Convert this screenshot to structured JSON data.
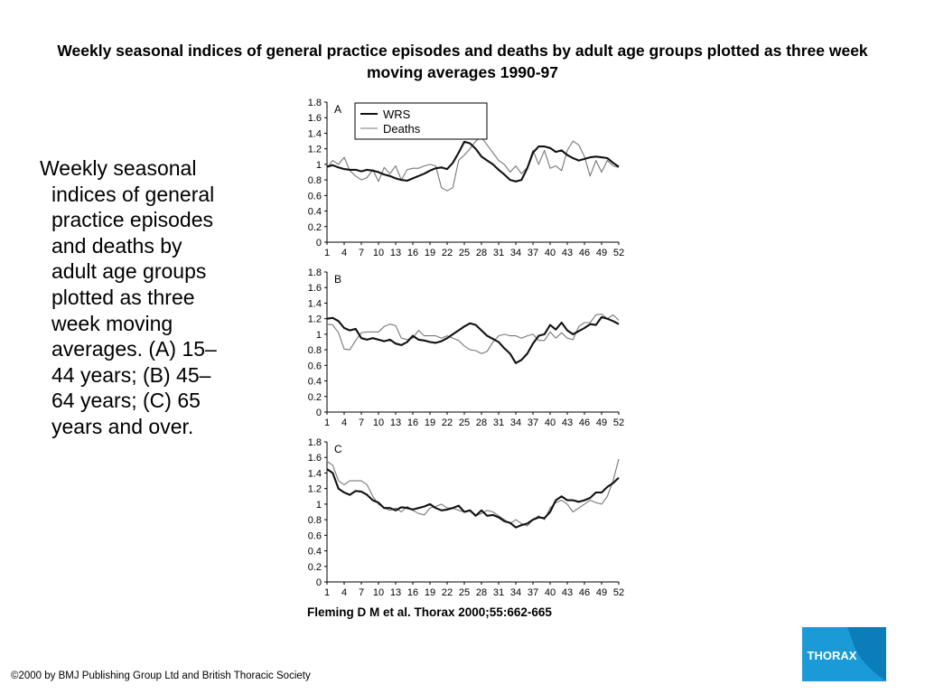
{
  "title": "Weekly seasonal indices of general practice episodes and deaths by adult age groups plotted as three week moving averages 1990-97",
  "caption": "Weekly seasonal indices of general practice episodes and deaths by adult age groups plotted as three week moving averages. (A) 15–44 years; (B) 45–64 years; (C) 65 years and over.",
  "citation": "Fleming D M et al. Thorax 2000;55:662-665",
  "copyright": "©2000 by BMJ Publishing Group Ltd and British Thoracic Society",
  "logo": {
    "text": "THORAX",
    "color": "#1a9ad6",
    "accent": "#0b7db8"
  },
  "colors": {
    "wrs": "#111111",
    "deaths": "#777777"
  },
  "chart_data": [
    {
      "type": "line",
      "panel_label": "A",
      "legend": [
        "WRS",
        "Deaths"
      ],
      "legend_position": "top-left",
      "x": [
        1,
        2,
        3,
        4,
        5,
        6,
        7,
        8,
        9,
        10,
        11,
        12,
        13,
        14,
        15,
        16,
        17,
        18,
        19,
        20,
        21,
        22,
        23,
        24,
        25,
        26,
        27,
        28,
        29,
        30,
        31,
        32,
        33,
        34,
        35,
        36,
        37,
        38,
        39,
        40,
        41,
        42,
        43,
        44,
        45,
        46,
        47,
        48,
        49,
        50,
        51,
        52
      ],
      "x_ticks": [
        1,
        4,
        7,
        10,
        13,
        16,
        19,
        22,
        25,
        28,
        31,
        34,
        37,
        40,
        43,
        46,
        49,
        52
      ],
      "ylim": [
        0,
        1.8
      ],
      "y_ticks": [
        "0",
        "0.2",
        "0.4",
        "0.6",
        "0.8",
        "1",
        "1.2",
        "1.4",
        "1.6",
        "1.8"
      ],
      "grid": false,
      "series": [
        {
          "name": "WRS",
          "values": [
            0.97,
            0.99,
            0.96,
            0.94,
            0.93,
            0.93,
            0.91,
            0.93,
            0.92,
            0.9,
            0.87,
            0.85,
            0.82,
            0.8,
            0.79,
            0.82,
            0.85,
            0.88,
            0.92,
            0.95,
            0.96,
            0.94,
            1.02,
            1.15,
            1.29,
            1.27,
            1.2,
            1.1,
            1.05,
            1.0,
            0.93,
            0.87,
            0.8,
            0.78,
            0.8,
            0.95,
            1.15,
            1.23,
            1.23,
            1.21,
            1.16,
            1.18,
            1.12,
            1.08,
            1.05,
            1.07,
            1.09,
            1.1,
            1.09,
            1.08,
            1.02,
            0.97
          ]
        },
        {
          "name": "Deaths",
          "values": [
            0.95,
            1.05,
            1.0,
            1.09,
            0.92,
            0.85,
            0.8,
            0.83,
            0.93,
            0.78,
            0.96,
            0.88,
            0.98,
            0.8,
            0.93,
            0.95,
            0.95,
            0.98,
            1.0,
            0.98,
            0.7,
            0.66,
            0.7,
            1.05,
            1.12,
            1.2,
            1.3,
            1.35,
            1.25,
            1.15,
            1.05,
            1.0,
            0.9,
            0.98,
            0.88,
            0.96,
            1.18,
            1.0,
            1.18,
            0.95,
            0.98,
            0.92,
            1.18,
            1.3,
            1.25,
            1.1,
            0.85,
            1.05,
            0.9,
            1.05,
            0.98,
            0.96
          ]
        }
      ]
    },
    {
      "type": "line",
      "panel_label": "B",
      "x": [
        1,
        2,
        3,
        4,
        5,
        6,
        7,
        8,
        9,
        10,
        11,
        12,
        13,
        14,
        15,
        16,
        17,
        18,
        19,
        20,
        21,
        22,
        23,
        24,
        25,
        26,
        27,
        28,
        29,
        30,
        31,
        32,
        33,
        34,
        35,
        36,
        37,
        38,
        39,
        40,
        41,
        42,
        43,
        44,
        45,
        46,
        47,
        48,
        49,
        50,
        51,
        52
      ],
      "x_ticks": [
        1,
        4,
        7,
        10,
        13,
        16,
        19,
        22,
        25,
        28,
        31,
        34,
        37,
        40,
        43,
        46,
        49,
        52
      ],
      "ylim": [
        0,
        1.8
      ],
      "y_ticks": [
        "0",
        "0.2",
        "0.4",
        "0.6",
        "0.8",
        "1",
        "1.2",
        "1.4",
        "1.6",
        "1.8"
      ],
      "grid": false,
      "series": [
        {
          "name": "WRS",
          "values": [
            1.2,
            1.21,
            1.17,
            1.08,
            1.05,
            1.07,
            0.95,
            0.93,
            0.95,
            0.93,
            0.91,
            0.93,
            0.88,
            0.86,
            0.9,
            0.98,
            0.93,
            0.92,
            0.9,
            0.89,
            0.91,
            0.95,
            1.0,
            1.05,
            1.1,
            1.14,
            1.12,
            1.05,
            0.98,
            0.94,
            0.9,
            0.82,
            0.75,
            0.63,
            0.67,
            0.75,
            0.88,
            0.98,
            1.0,
            1.12,
            1.06,
            1.15,
            1.05,
            1.0,
            1.04,
            1.08,
            1.13,
            1.12,
            1.22,
            1.2,
            1.17,
            1.13
          ]
        },
        {
          "name": "Deaths",
          "values": [
            1.13,
            1.12,
            1.02,
            0.81,
            0.8,
            0.92,
            1.02,
            1.03,
            1.03,
            1.03,
            1.1,
            1.13,
            1.11,
            0.95,
            0.93,
            0.95,
            1.05,
            0.98,
            0.98,
            0.98,
            0.95,
            0.98,
            0.95,
            0.92,
            0.85,
            0.8,
            0.79,
            0.75,
            0.78,
            0.9,
            0.98,
            1.0,
            0.98,
            0.98,
            0.95,
            0.98,
            1.0,
            0.92,
            0.92,
            1.03,
            0.95,
            1.02,
            0.95,
            0.93,
            1.1,
            1.15,
            1.15,
            1.25,
            1.26,
            1.2,
            1.25,
            1.18
          ]
        }
      ]
    },
    {
      "type": "line",
      "panel_label": "C",
      "x": [
        1,
        2,
        3,
        4,
        5,
        6,
        7,
        8,
        9,
        10,
        11,
        12,
        13,
        14,
        15,
        16,
        17,
        18,
        19,
        20,
        21,
        22,
        23,
        24,
        25,
        26,
        27,
        28,
        29,
        30,
        31,
        32,
        33,
        34,
        35,
        36,
        37,
        38,
        39,
        40,
        41,
        42,
        43,
        44,
        45,
        46,
        47,
        48,
        49,
        50,
        51,
        52
      ],
      "x_ticks": [
        1,
        4,
        7,
        10,
        13,
        16,
        19,
        22,
        25,
        28,
        31,
        34,
        37,
        40,
        43,
        46,
        49,
        52
      ],
      "ylim": [
        0,
        1.8
      ],
      "y_ticks": [
        "0",
        "0.2",
        "0.4",
        "0.6",
        "0.8",
        "1",
        "1.2",
        "1.4",
        "1.6",
        "1.8"
      ],
      "grid": false,
      "series": [
        {
          "name": "WRS",
          "values": [
            1.45,
            1.4,
            1.2,
            1.15,
            1.12,
            1.17,
            1.16,
            1.12,
            1.05,
            1.02,
            0.95,
            0.95,
            0.92,
            0.96,
            0.95,
            0.93,
            0.95,
            0.97,
            1.0,
            0.95,
            0.92,
            0.93,
            0.95,
            0.98,
            0.9,
            0.92,
            0.85,
            0.92,
            0.85,
            0.86,
            0.83,
            0.78,
            0.76,
            0.7,
            0.73,
            0.75,
            0.8,
            0.83,
            0.82,
            0.9,
            1.05,
            1.1,
            1.05,
            1.05,
            1.03,
            1.05,
            1.08,
            1.15,
            1.15,
            1.22,
            1.27,
            1.34
          ]
        },
        {
          "name": "Deaths",
          "values": [
            1.55,
            1.5,
            1.3,
            1.25,
            1.3,
            1.3,
            1.3,
            1.25,
            1.1,
            1.0,
            0.95,
            0.92,
            0.95,
            0.9,
            0.97,
            0.92,
            0.88,
            0.86,
            0.95,
            0.97,
            1.0,
            0.95,
            0.95,
            0.92,
            0.9,
            0.92,
            0.85,
            0.88,
            0.92,
            0.9,
            0.85,
            0.8,
            0.75,
            0.8,
            0.75,
            0.72,
            0.8,
            0.85,
            0.8,
            0.95,
            1.02,
            1.05,
            1.0,
            0.9,
            0.95,
            1.0,
            1.05,
            1.02,
            1.0,
            1.1,
            1.3,
            1.58
          ]
        }
      ]
    }
  ]
}
